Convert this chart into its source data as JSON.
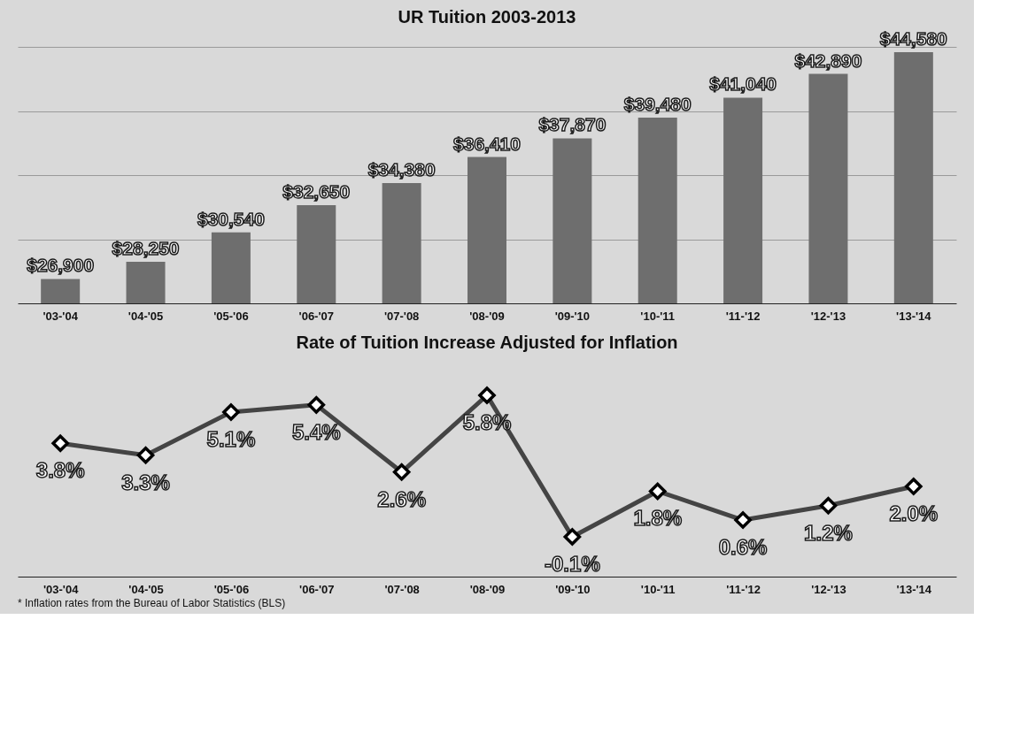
{
  "chart_data": [
    {
      "type": "bar",
      "title": "UR Tuition 2003-2013",
      "categories": [
        "'03-'04",
        "'04-'05",
        "'05-'06",
        "'06-'07",
        "'07-'08",
        "'08-'09",
        "'09-'10",
        "'10-'11",
        "'11-'12",
        "'12-'13",
        "'13-'14"
      ],
      "values": [
        26900,
        28250,
        30540,
        32650,
        34380,
        36410,
        37870,
        39480,
        41040,
        42890,
        44580
      ],
      "value_labels": [
        "$26,900",
        "$28,250",
        "$30,540",
        "$32,650",
        "$34,380",
        "$36,410",
        "$37,870",
        "$39,480",
        "$41,040",
        "$42,890",
        "$44,580"
      ],
      "color": "#6e6e6e",
      "ylim": [
        25000,
        45000
      ],
      "yticks": [
        {
          "value": 30000,
          "label": null
        },
        {
          "value": 35000,
          "label": null
        },
        {
          "value": 40000,
          "label": null
        },
        {
          "value": 45000,
          "label": null
        }
      ],
      "grid": "y",
      "tick_labels": "x"
    },
    {
      "type": "line",
      "title": "Rate of Tuition Increase Adjusted for Inflation",
      "categories": [
        "'03-'04",
        "'04-'05",
        "'05-'06",
        "'06-'07",
        "'07-'08",
        "'08-'09",
        "'09-'10",
        "'10-'11",
        "'11-'12",
        "'12-'13",
        "'13-'14"
      ],
      "values": [
        3.8,
        3.3,
        5.1,
        5.4,
        2.6,
        5.8,
        -0.1,
        1.8,
        0.6,
        1.2,
        2.0
      ],
      "value_labels": [
        "3.8%",
        "3.3%",
        "5.1%",
        "5.4%",
        "2.6%",
        "5.8%",
        "-0.1%",
        "1.8%",
        "0.6%",
        "1.2%",
        "2.0%"
      ],
      "color": "#444444",
      "marker": "diamond",
      "line_style": "solid",
      "grid": false,
      "tick_labels": "x",
      "annotations": [
        "* Inflation rates from the Bureau of Labor Statistics (BLS)"
      ]
    }
  ]
}
